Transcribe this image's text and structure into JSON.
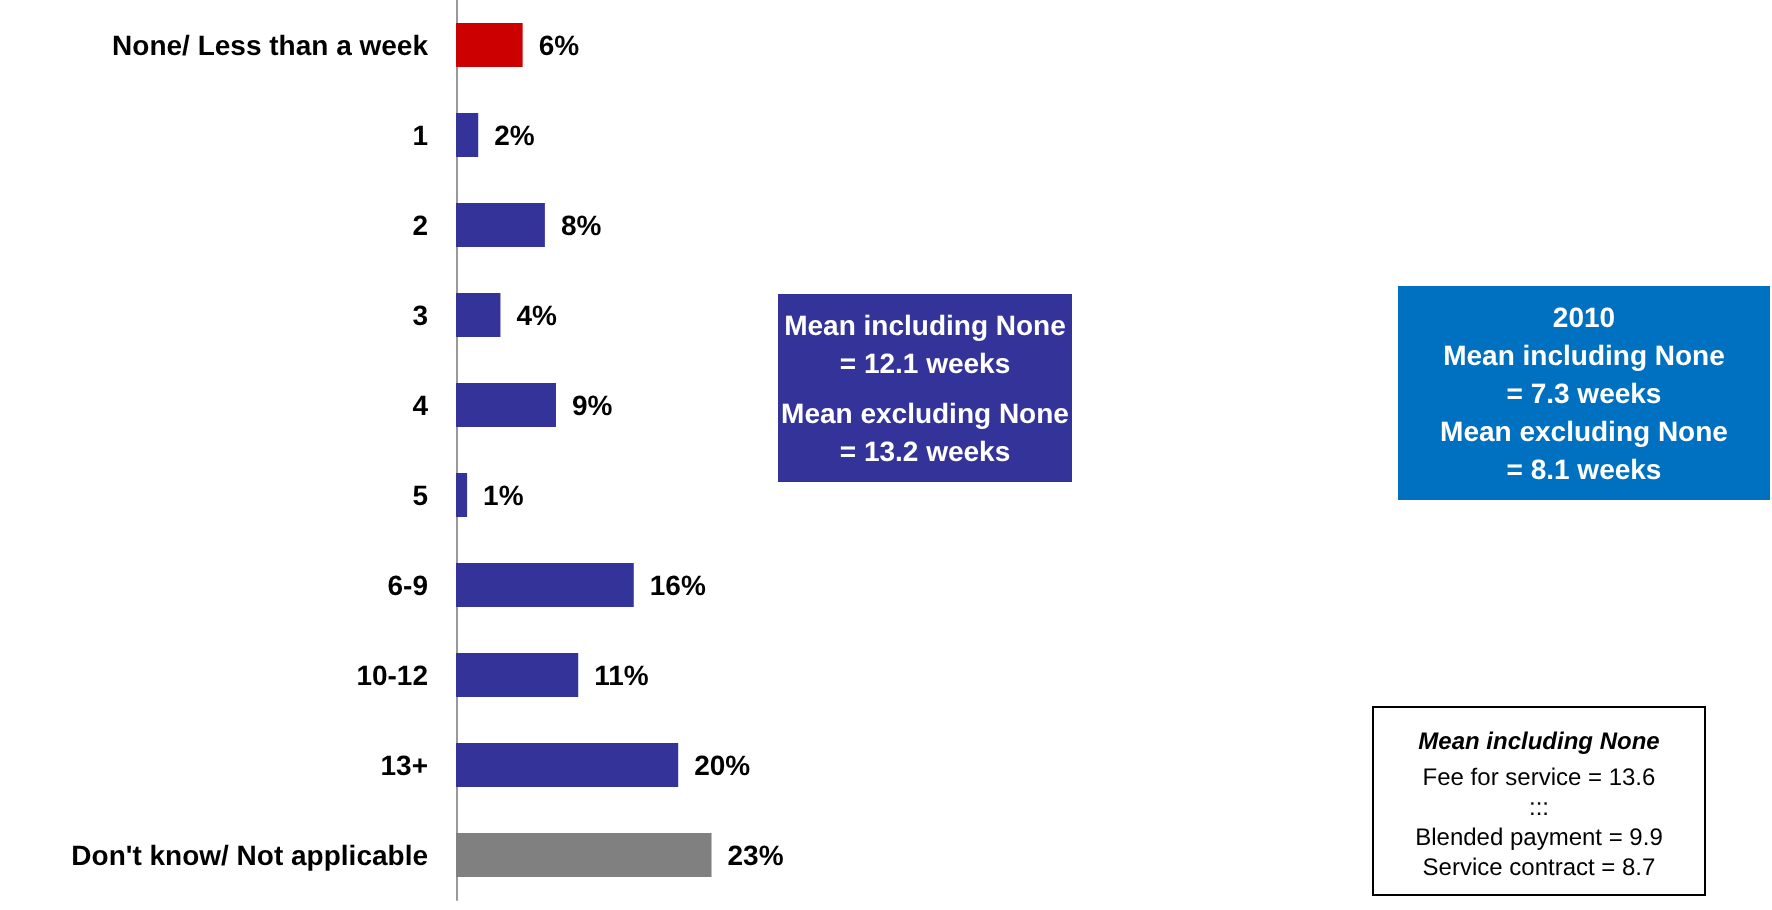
{
  "chart_data": {
    "type": "bar",
    "orientation": "horizontal",
    "categories": [
      "None/ Less than a week",
      "1",
      "2",
      "3",
      "4",
      "5",
      "6-9",
      "10-12",
      "13+",
      "Don't know/ Not applicable"
    ],
    "values": [
      6,
      2,
      8,
      4,
      9,
      1,
      16,
      11,
      20,
      23
    ],
    "colors": [
      "#cc0000",
      "#333399",
      "#333399",
      "#333399",
      "#333399",
      "#333399",
      "#333399",
      "#333399",
      "#333399",
      "#808080"
    ],
    "value_labels": [
      "6%",
      "2%",
      "8%",
      "4%",
      "9%",
      "1%",
      "16%",
      "11%",
      "20%",
      "23%"
    ],
    "data_labels": true,
    "annotations": [
      "Mean including None\n= 12.1 weeks\n\nMean excluding None\n= 13.2 weeks",
      "2010\nMean including None\n= 7.3 weeks\nMean excluding None\n= 8.1 weeks",
      "Mean including None\nFee for service = 13.6\n:::\nBlended payment = 9.9\nService contract = 8.7"
    ]
  }
}
